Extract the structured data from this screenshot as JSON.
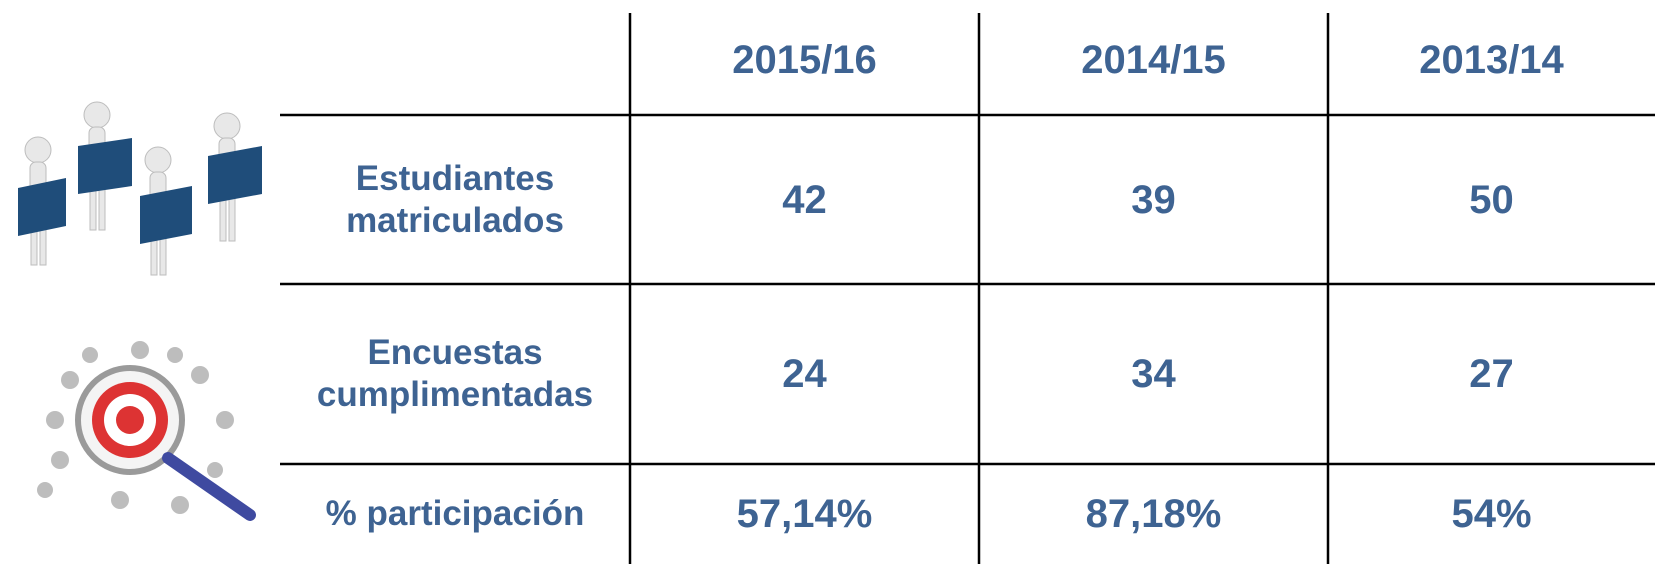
{
  "table": {
    "columns": [
      "2015/16",
      "2014/15",
      "2013/14"
    ],
    "rows": [
      {
        "label": "Estudiantes matriculados",
        "cells": [
          "42",
          "39",
          "50"
        ]
      },
      {
        "label": "Encuestas cumplimentadas",
        "cells": [
          "24",
          "34",
          "27"
        ]
      },
      {
        "label": "% participación",
        "cells": [
          "57,14%",
          "87,18%",
          "54%"
        ]
      }
    ]
  }
}
